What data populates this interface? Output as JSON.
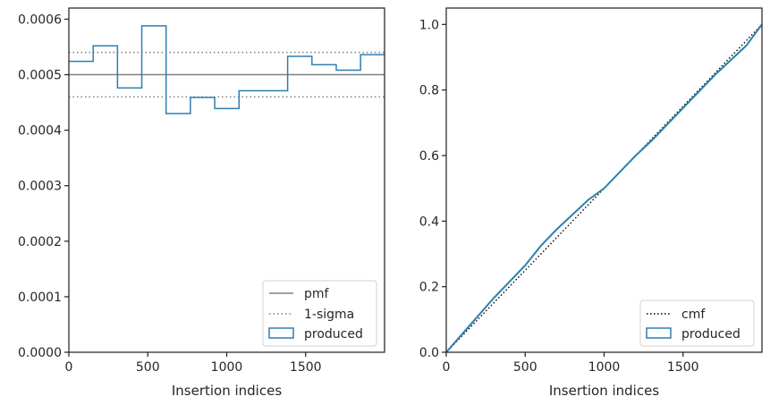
{
  "chart_data": [
    {
      "type": "histogram",
      "xlabel": "Insertion indices",
      "ylabel": "",
      "xlim": [
        0,
        2000
      ],
      "ylim": [
        0,
        0.00062
      ],
      "xticks": [
        0,
        500,
        1000,
        1500
      ],
      "xtick_labels": [
        "0",
        "500",
        "1000",
        "1500"
      ],
      "yticks": [
        0,
        0.0001,
        0.0002,
        0.0003,
        0.0004,
        0.0005,
        0.0006
      ],
      "ytick_labels": [
        "0.0000",
        "0.0001",
        "0.0002",
        "0.0003",
        "0.0004",
        "0.0005",
        "0.0006"
      ],
      "grid": false,
      "legend_placement": "lower-right",
      "reference_lines": [
        {
          "name": "pmf",
          "y": 0.0005,
          "style": "solid",
          "color": "#808080"
        },
        {
          "name": "1-sigma",
          "y": [
            0.00046,
            0.00054
          ],
          "style": "dotted",
          "color": "#808080"
        }
      ],
      "series": [
        {
          "name": "produced",
          "kind": "step",
          "color": "#2e7fb0",
          "bin_edges": [
            0,
            154,
            308,
            462,
            616,
            770,
            924,
            1078,
            1232,
            1386,
            1540,
            1694,
            1848,
            2000
          ],
          "values": [
            0.000524,
            0.000552,
            0.000476,
            0.000588,
            0.00043,
            0.000459,
            0.000439,
            0.000471,
            0.000471,
            0.000533,
            0.000518,
            0.000508,
            0.000536
          ]
        }
      ],
      "legend": [
        "pmf",
        "1-sigma",
        "produced"
      ]
    },
    {
      "type": "line",
      "xlabel": "Insertion indices",
      "ylabel": "",
      "xlim": [
        0,
        2000
      ],
      "ylim": [
        0,
        1.05
      ],
      "xticks": [
        0,
        500,
        1000,
        1500
      ],
      "xtick_labels": [
        "0",
        "500",
        "1000",
        "1500"
      ],
      "yticks": [
        0,
        0.2,
        0.4,
        0.6,
        0.8,
        1.0
      ],
      "ytick_labels": [
        "0.0",
        "0.2",
        "0.4",
        "0.6",
        "0.8",
        "1.0"
      ],
      "grid": false,
      "legend_placement": "lower-right",
      "series": [
        {
          "name": "cmf",
          "kind": "line",
          "style": "dotted",
          "color": "#000000",
          "x": [
            0,
            2000
          ],
          "y": [
            0,
            1.0
          ]
        },
        {
          "name": "produced",
          "kind": "step",
          "color": "#2e7fb0",
          "x": [
            0,
            100,
            200,
            300,
            400,
            500,
            600,
            700,
            800,
            900,
            1000,
            1100,
            1200,
            1300,
            1400,
            1500,
            1600,
            1700,
            1800,
            1900,
            2000
          ],
          "y": [
            0,
            0.055,
            0.11,
            0.165,
            0.215,
            0.265,
            0.325,
            0.375,
            0.42,
            0.465,
            0.5,
            0.55,
            0.6,
            0.645,
            0.695,
            0.745,
            0.795,
            0.845,
            0.89,
            0.935,
            1.0
          ]
        }
      ],
      "legend": [
        "cmf",
        "produced"
      ]
    }
  ]
}
